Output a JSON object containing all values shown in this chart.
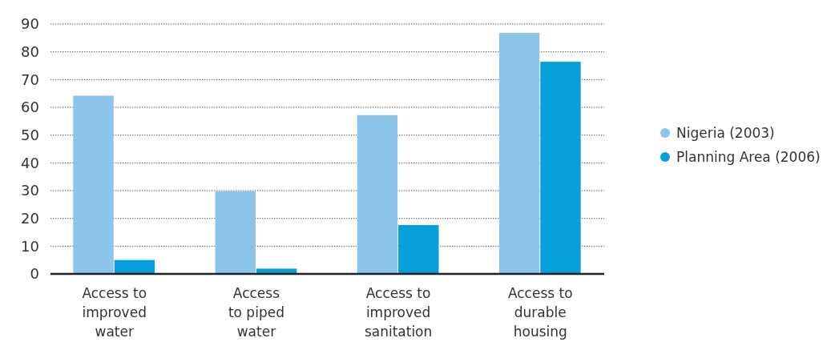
{
  "chart_data": {
    "type": "bar",
    "categories": [
      "Access to\nimproved\nwater",
      "Access\nto piped\nwater",
      "Access to\nimproved\nsanitation",
      "Access to\ndurable\nhousing"
    ],
    "series": [
      {
        "name": "Nigeria (2003)",
        "color": "#8dc4ea",
        "values": [
          64.2,
          29.8,
          57.2,
          86.8
        ]
      },
      {
        "name": "Planning Area (2006)",
        "color": "#069fdc",
        "values": [
          5,
          1.9,
          17.6,
          76.4
        ]
      }
    ],
    "ylim": [
      0,
      90
    ],
    "yticks": [
      0,
      10,
      20,
      30,
      40,
      50,
      60,
      70,
      80,
      90
    ],
    "grid": "y",
    "legend": "right"
  }
}
